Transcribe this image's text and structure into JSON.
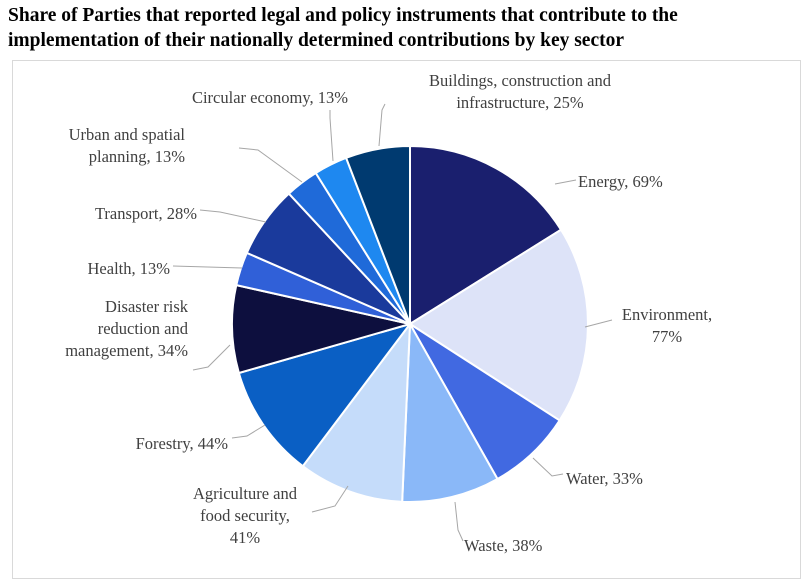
{
  "chart_data": {
    "type": "pie",
    "title_lines": [
      "Share of Parties that reported legal and policy instruments that contribute to the",
      "implementation of their nationally determined contributions by key sector"
    ],
    "slices": [
      {
        "label_lines": [
          "Energy, 69%"
        ],
        "value": 69,
        "color": "#1a1f6e"
      },
      {
        "label_lines": [
          "Environment,",
          "77%"
        ],
        "value": 77,
        "color": "#dde3f8"
      },
      {
        "label_lines": [
          "Water, 33%"
        ],
        "value": 33,
        "color": "#4169e1"
      },
      {
        "label_lines": [
          "Waste, 38%"
        ],
        "value": 38,
        "color": "#8ab8f8"
      },
      {
        "label_lines": [
          "Agriculture and",
          "food security,",
          "41%"
        ],
        "value": 41,
        "color": "#c5dcfa"
      },
      {
        "label_lines": [
          "Forestry, 44%"
        ],
        "value": 44,
        "color": "#0a5fc4"
      },
      {
        "label_lines": [
          "Disaster risk",
          "reduction and",
          "management, 34%"
        ],
        "value": 34,
        "color": "#0d0f3e"
      },
      {
        "label_lines": [
          "Health, 13%"
        ],
        "value": 13,
        "color": "#3060d8"
      },
      {
        "label_lines": [
          "Transport, 28%"
        ],
        "value": 28,
        "color": "#1a3a9c"
      },
      {
        "label_lines": [
          "Urban and spatial",
          "planning, 13%"
        ],
        "value": 13,
        "color": "#1f6ad9"
      },
      {
        "label_lines": [
          "Circular economy, 13%"
        ],
        "value": 13,
        "color": "#1e88f0"
      },
      {
        "label_lines": [
          "Buildings, construction and",
          "infrastructure, 25%"
        ],
        "value": 25,
        "color": "#003a70"
      }
    ]
  }
}
